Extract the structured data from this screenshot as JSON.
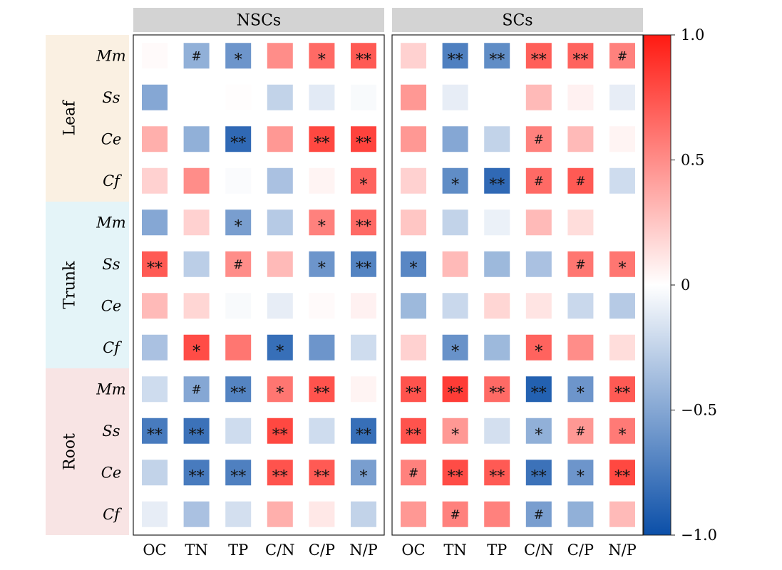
{
  "chart_data": {
    "type": "heatmap",
    "panels": [
      "NSCs",
      "SCs"
    ],
    "columns": [
      "OC",
      "TN",
      "TP",
      "C/N",
      "C/P",
      "N/P"
    ],
    "groups": [
      {
        "name": "Leaf",
        "rows": [
          "Mm",
          "Ss",
          "Ce",
          "Cf"
        ],
        "color": "#FAF0E2"
      },
      {
        "name": "Trunk",
        "rows": [
          "Mm",
          "Ss",
          "Ce",
          "Cf"
        ],
        "color": "#E4F4F8"
      },
      {
        "name": "Root",
        "rows": [
          "Mm",
          "Ss",
          "Ce",
          "Cf"
        ],
        "color": "#F8E4E4"
      }
    ],
    "values": {
      "NSCs": [
        [
          0.02,
          -0.45,
          -0.6,
          0.5,
          0.65,
          0.72
        ],
        [
          -0.5,
          0,
          0.01,
          -0.25,
          -0.12,
          -0.03
        ],
        [
          0.35,
          -0.45,
          -0.85,
          0.45,
          0.8,
          0.82
        ],
        [
          0.2,
          0.5,
          -0.02,
          -0.35,
          0.05,
          0.68
        ],
        [
          -0.5,
          0.2,
          -0.55,
          -0.3,
          0.55,
          0.65
        ],
        [
          0.72,
          -0.28,
          0.5,
          0.3,
          -0.6,
          -0.7
        ],
        [
          0.3,
          0.18,
          -0.03,
          -0.1,
          0.02,
          0.06
        ],
        [
          -0.35,
          0.78,
          0.6,
          -0.82,
          -0.6,
          -0.2
        ],
        [
          -0.2,
          -0.5,
          -0.7,
          0.6,
          0.75,
          0.05
        ],
        [
          -0.75,
          -0.8,
          -0.2,
          0.8,
          -0.2,
          -0.82
        ],
        [
          -0.25,
          -0.75,
          -0.72,
          0.75,
          0.72,
          -0.55
        ],
        [
          -0.1,
          -0.35,
          -0.18,
          0.35,
          0.1,
          -0.25
        ]
      ],
      "SCs": [
        [
          0.2,
          -0.72,
          -0.65,
          0.7,
          0.68,
          0.55
        ],
        [
          0.45,
          -0.1,
          0,
          0.3,
          0.06,
          -0.1
        ],
        [
          0.45,
          -0.5,
          -0.25,
          0.55,
          0.3,
          0.05
        ],
        [
          0.2,
          -0.65,
          -0.85,
          0.65,
          0.72,
          -0.2
        ],
        [
          0.25,
          -0.25,
          -0.08,
          0.3,
          0.15,
          0
        ],
        [
          -0.68,
          0.3,
          -0.4,
          -0.35,
          0.6,
          0.6
        ],
        [
          -0.4,
          -0.22,
          0.18,
          0.12,
          -0.22,
          -0.3
        ],
        [
          0.2,
          -0.62,
          -0.4,
          0.68,
          0.5,
          0.15
        ],
        [
          0.75,
          0.85,
          0.65,
          -0.9,
          -0.6,
          0.72
        ],
        [
          0.75,
          0.45,
          -0.18,
          -0.45,
          0.45,
          0.58
        ],
        [
          0.55,
          0.78,
          0.72,
          -0.8,
          -0.6,
          0.8
        ],
        [
          0.45,
          0.55,
          0.55,
          -0.55,
          -0.45,
          0.3
        ]
      ]
    },
    "significance": {
      "NSCs": [
        [
          "",
          "#",
          "*",
          "",
          "*",
          "**"
        ],
        [
          "",
          "",
          "",
          "",
          "",
          ""
        ],
        [
          "",
          "",
          "**",
          "",
          "**",
          "**"
        ],
        [
          "",
          "",
          "",
          "",
          "",
          "*"
        ],
        [
          "",
          "",
          "*",
          "",
          "*",
          "**"
        ],
        [
          "**",
          "",
          "#",
          "",
          "*",
          "**"
        ],
        [
          "",
          "",
          "",
          "",
          "",
          ""
        ],
        [
          "",
          "*",
          "",
          "*",
          "",
          ""
        ],
        [
          "",
          "#",
          "**",
          "*",
          "**",
          ""
        ],
        [
          "**",
          "**",
          "",
          "**",
          "",
          "**"
        ],
        [
          "",
          "**",
          "**",
          "**",
          "**",
          "*"
        ],
        [
          "",
          "",
          "",
          "",
          "",
          ""
        ]
      ],
      "SCs": [
        [
          "",
          "**",
          "**",
          "**",
          "**",
          "#"
        ],
        [
          "",
          "",
          "",
          "",
          "",
          ""
        ],
        [
          "",
          "",
          "",
          "#",
          "",
          ""
        ],
        [
          "",
          "*",
          "**",
          "#",
          "#",
          ""
        ],
        [
          "",
          "",
          "",
          "",
          "",
          ""
        ],
        [
          "*",
          "",
          "",
          "",
          "#",
          "*"
        ],
        [
          "",
          "",
          "",
          "",
          "",
          ""
        ],
        [
          "",
          "*",
          "",
          "*",
          "",
          ""
        ],
        [
          "**",
          "**",
          "**",
          "**",
          "*",
          "**"
        ],
        [
          "**",
          "*",
          "",
          "*",
          "#",
          "*"
        ],
        [
          "#",
          "**",
          "**",
          "**",
          "*",
          "**"
        ],
        [
          "",
          "#",
          "",
          "#",
          "",
          ""
        ]
      ]
    },
    "colorbar": {
      "min": -1.0,
      "max": 1.0,
      "ticks": [
        1.0,
        0.5,
        0,
        -0.5,
        -1.0
      ],
      "tick_labels": [
        "1.0",
        "0.5",
        "0",
        "−0.5",
        "−1.0"
      ],
      "colors": {
        "negative": "#0B4FA8",
        "neutral": "#FFFFFF",
        "positive": "#FF1A12"
      }
    },
    "strip_color": "#D3D3D3",
    "title": "",
    "xlabel": "",
    "ylabel": ""
  }
}
